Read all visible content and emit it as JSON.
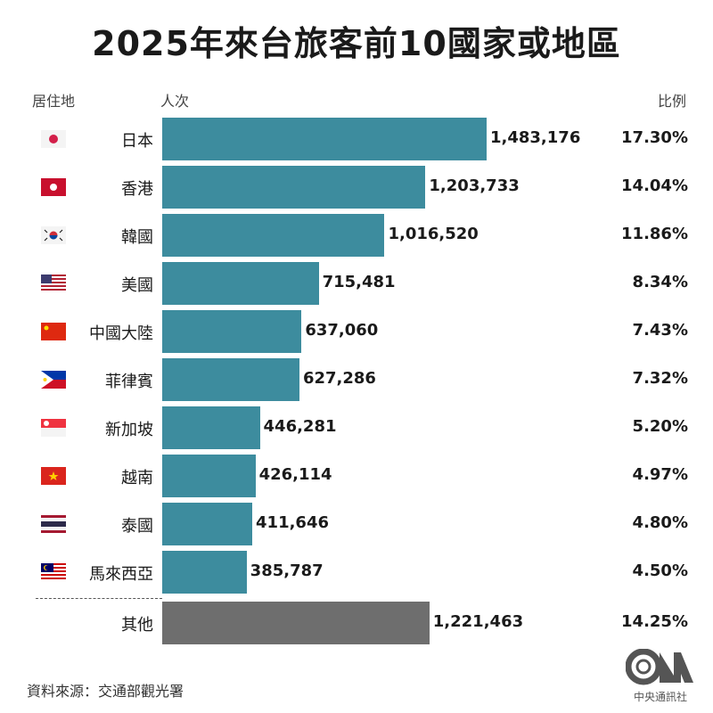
{
  "title": "2025年來台旅客前10國家或地區",
  "headers": {
    "residence": "居住地",
    "visitors": "人次",
    "share": "比例"
  },
  "source": "資料來源：交通部觀光署",
  "logo": {
    "text": "CNA",
    "subtitle": "中央通訊社"
  },
  "colors": {
    "bar": "#3d8c9e",
    "other_bar": "#6e6e6e"
  },
  "chart_data": {
    "type": "bar",
    "orientation": "horizontal",
    "title": "2025年來台旅客前10國家或地區",
    "categories": [
      "日本",
      "香港",
      "韓國",
      "美國",
      "中國大陸",
      "菲律賓",
      "新加坡",
      "越南",
      "泰國",
      "馬來西亞",
      "其他"
    ],
    "flags": [
      "japan-flag",
      "hong-kong-flag",
      "south-korea-flag",
      "usa-flag",
      "china-flag",
      "philippines-flag",
      "singapore-flag",
      "vietnam-flag",
      "thailand-flag",
      "malaysia-flag",
      ""
    ],
    "values": [
      1483176,
      1203733,
      1016520,
      715481,
      637060,
      627286,
      446281,
      426114,
      411646,
      385787,
      1221463
    ],
    "value_labels": [
      "1,483,176",
      "1,203,733",
      "1,016,520",
      "715,481",
      "637,060",
      "627,286",
      "446,281",
      "426,114",
      "411,646",
      "385,787",
      "1,221,463"
    ],
    "shares": [
      "17.30%",
      "14.04%",
      "11.86%",
      "8.34%",
      "7.43%",
      "7.32%",
      "5.20%",
      "4.97%",
      "4.80%",
      "4.50%",
      "14.25%"
    ],
    "xlim": [
      0,
      1483176
    ]
  }
}
